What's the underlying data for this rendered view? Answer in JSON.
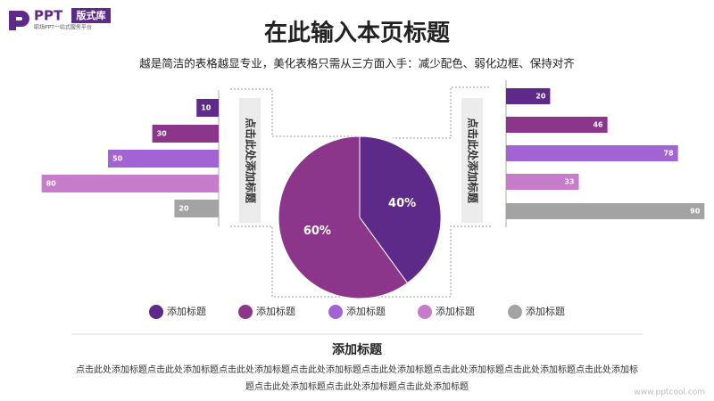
{
  "logo": {
    "brand": "PPT",
    "badge": "版式库",
    "tagline": "职场PPT一站式服务平台"
  },
  "header": {
    "title": "在此输入本页标题",
    "subtitle": "越是简洁的表格越显专业，美化表格只需从三方面入手：减少配色、弱化边框、保持对齐"
  },
  "side_labels": [
    "点击此处添加标题",
    "点击此处添加标题"
  ],
  "chart_data": [
    {
      "type": "bar",
      "orientation": "horizontal",
      "xreverse": true,
      "values": [
        10,
        30,
        50,
        80,
        20
      ],
      "colors": [
        "#5e2a8a",
        "#8b368b",
        "#a264d2",
        "#c67ccb",
        "#a3a3a3"
      ]
    },
    {
      "type": "pie",
      "values": [
        40,
        60
      ],
      "value_labels": [
        "40%",
        "60%"
      ],
      "colors": [
        "#5e2a8a",
        "#8b368b"
      ]
    },
    {
      "type": "bar",
      "orientation": "horizontal",
      "xreverse": false,
      "values": [
        20,
        46,
        78,
        33,
        90
      ],
      "colors": [
        "#5e2a8a",
        "#8b368b",
        "#a264d2",
        "#c67ccb",
        "#a3a3a3"
      ]
    }
  ],
  "legend": {
    "items": [
      {
        "label": "添加标题",
        "color": "#5e2a8a"
      },
      {
        "label": "添加标题",
        "color": "#8b368b"
      },
      {
        "label": "添加标题",
        "color": "#a264d2"
      },
      {
        "label": "添加标题",
        "color": "#c67ccb"
      },
      {
        "label": "添加标题",
        "color": "#a3a3a3"
      }
    ]
  },
  "footer": {
    "title": "添加标题",
    "text": "点击此处添加标题点击此处添加标题点击此处添加标题点击此处添加标题点击此处添加标题点击此处添加标题点击此处添加标题点击此处添加标题点击此处添加标题点击此处添加标题点击此处添加标题",
    "watermark": "www.pptcool.com"
  }
}
